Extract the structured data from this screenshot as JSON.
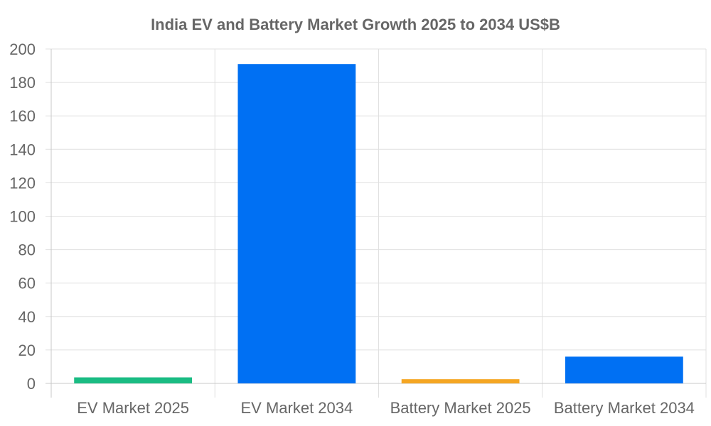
{
  "chart_data": {
    "type": "bar",
    "title": "India EV and Battery Market Growth 2025 to 2034 US$B",
    "xlabel": "",
    "ylabel": "",
    "categories": [
      "EV Market 2025",
      "EV Market 2034",
      "Battery Market 2025",
      "Battery Market 2034"
    ],
    "values": [
      3.6,
      191,
      2.5,
      16
    ],
    "colors": [
      "#1abc83",
      "#0070f3",
      "#f5a623",
      "#0070f3"
    ],
    "ylim": [
      0,
      200
    ],
    "yticks": [
      0,
      20,
      40,
      60,
      80,
      100,
      120,
      140,
      160,
      180,
      200
    ],
    "ytick_labels": [
      "0",
      "20",
      "40",
      "60",
      "80",
      "100",
      "120",
      "140",
      "160",
      "180",
      "200"
    ],
    "grid": true,
    "legend": "none"
  },
  "colors": {
    "text": "#666666",
    "grid": "#e0e0e0",
    "axis": "#c8c8c8"
  }
}
